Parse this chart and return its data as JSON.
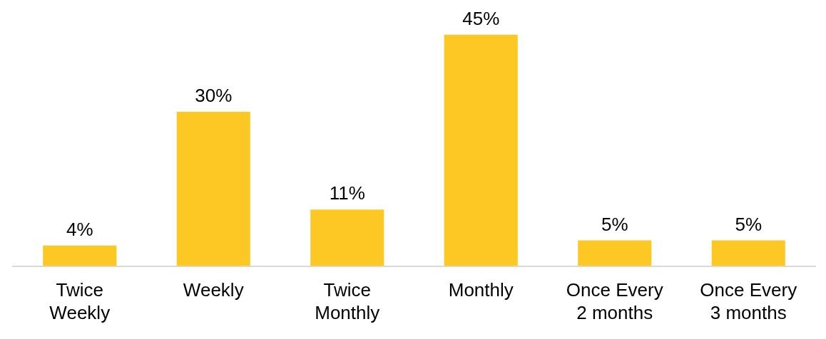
{
  "chart_data": {
    "type": "bar",
    "categories": [
      "Twice Weekly",
      "Weekly",
      "Twice Monthly",
      "Monthly",
      "Once Every 2 months",
      "Once Every 3 months"
    ],
    "values": [
      4,
      30,
      11,
      45,
      5,
      5
    ],
    "value_labels": [
      "4%",
      "30%",
      "11%",
      "45%",
      "5%",
      "5%"
    ],
    "color": "#fdc824",
    "grid": false,
    "legend": false
  }
}
